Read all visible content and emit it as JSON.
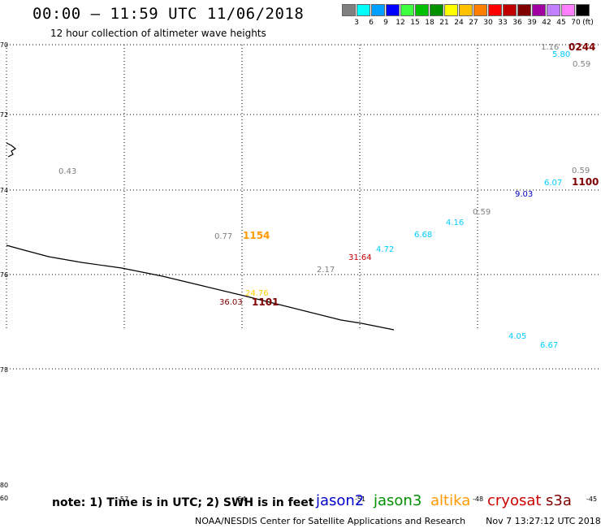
{
  "title": "00:00 – 11:59 UTC 11/06/2018",
  "subtitle": "12 hour collection of altimeter wave heights",
  "legend": {
    "unit": "(ft)",
    "items": [
      {
        "label": "3",
        "color": "#808080"
      },
      {
        "label": "6",
        "color": "#00ffff"
      },
      {
        "label": "9",
        "color": "#00a0ff"
      },
      {
        "label": "12",
        "color": "#0000ff"
      },
      {
        "label": "15",
        "color": "#40ff40"
      },
      {
        "label": "18",
        "color": "#00c000"
      },
      {
        "label": "21",
        "color": "#009000"
      },
      {
        "label": "24",
        "color": "#ffff00"
      },
      {
        "label": "27",
        "color": "#ffc000"
      },
      {
        "label": "30",
        "color": "#ff8000"
      },
      {
        "label": "33",
        "color": "#ff0000"
      },
      {
        "label": "36",
        "color": "#c00000"
      },
      {
        "label": "39",
        "color": "#800000"
      },
      {
        "label": "42",
        "color": "#a000a0"
      },
      {
        "label": "45",
        "color": "#c080ff"
      },
      {
        "label": "70",
        "color": "#ff80ff"
      },
      {
        "label": "",
        "color": "#000000"
      }
    ]
  },
  "lat_labels": [
    "-70",
    "-72",
    "-74",
    "-76",
    "-78",
    "-80",
    "-60"
  ],
  "lon_labels": [
    "-57",
    "-54",
    "-51",
    "-48",
    "-45"
  ],
  "observations": [
    {
      "text": "1.16",
      "color": "#808080"
    },
    {
      "text": "5.80",
      "color": "#00ccff"
    },
    {
      "text": "0244",
      "color": "#800000",
      "bold": true
    },
    {
      "text": "0.59",
      "color": "#808080"
    },
    {
      "text": "0.43",
      "color": "#808080"
    },
    {
      "text": "0.59",
      "color": "#808080"
    },
    {
      "text": "6.07",
      "color": "#00ccff"
    },
    {
      "text": "1100",
      "color": "#800000",
      "bold": true
    },
    {
      "text": "9.03",
      "color": "#0000cc"
    },
    {
      "text": "0.59",
      "color": "#808080"
    },
    {
      "text": "4.16",
      "color": "#00ccff"
    },
    {
      "text": "6.68",
      "color": "#00ccff"
    },
    {
      "text": "0.77",
      "color": "#808080"
    },
    {
      "text": "1154",
      "color": "#ff9900",
      "bold": true
    },
    {
      "text": "4.72",
      "color": "#00ccff"
    },
    {
      "text": "31.64",
      "color": "#cc0000"
    },
    {
      "text": "2.17",
      "color": "#808080"
    },
    {
      "text": "24.76",
      "color": "#ffcc00"
    },
    {
      "text": "36.03",
      "color": "#800000"
    },
    {
      "text": "1101",
      "color": "#800000",
      "bold": true
    },
    {
      "text": "4.05",
      "color": "#00ccff"
    },
    {
      "text": "6.67",
      "color": "#00ccff"
    }
  ],
  "footer": {
    "note": "note: 1) Time is in UTC; 2) SWH is in feet",
    "satellites": [
      {
        "name": "jason2",
        "color": "#0000cc"
      },
      {
        "name": "jason3",
        "color": "#009000"
      },
      {
        "name": "altika",
        "color": "#ff9900"
      },
      {
        "name": "cryosat",
        "color": "#cc0000"
      },
      {
        "name": "s3a",
        "color": "#800000"
      }
    ],
    "credit": "NOAA/NESDIS Center for Satellite Applications and Research",
    "timestamp": "Nov  7 13:27:12 UTC 2018"
  }
}
